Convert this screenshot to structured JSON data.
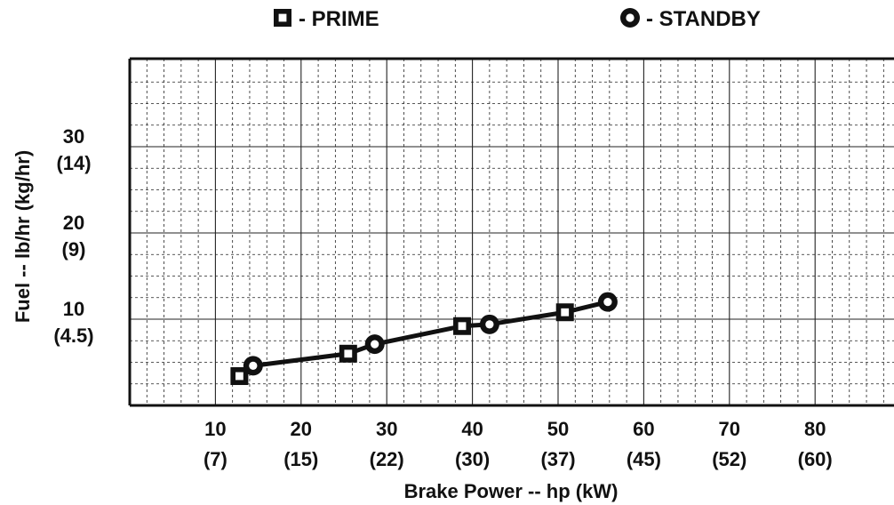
{
  "chart_data": {
    "type": "line",
    "xlabel": "Brake Power -- hp (kW)",
    "ylabel": "Fuel -- lb/hr (kg/hr)",
    "xlim": [
      0,
      90
    ],
    "ylim": [
      0,
      40
    ],
    "grid": true,
    "legend": "top",
    "x_ticks": [
      {
        "value": 10,
        "label": "10",
        "sublabel": "(7)"
      },
      {
        "value": 20,
        "label": "20",
        "sublabel": "(15)"
      },
      {
        "value": 30,
        "label": "30",
        "sublabel": "(22)"
      },
      {
        "value": 40,
        "label": "40",
        "sublabel": "(30)"
      },
      {
        "value": 50,
        "label": "50",
        "sublabel": "(37)"
      },
      {
        "value": 60,
        "label": "60",
        "sublabel": "(45)"
      },
      {
        "value": 70,
        "label": "70",
        "sublabel": "(52)"
      },
      {
        "value": 80,
        "label": "80",
        "sublabel": "(60)"
      }
    ],
    "y_ticks": [
      {
        "value": 10,
        "label": "10",
        "sublabel": "(4.5)"
      },
      {
        "value": 20,
        "label": "20",
        "sublabel": "(9)"
      },
      {
        "value": 30,
        "label": "30",
        "sublabel": "(14)"
      }
    ],
    "series": [
      {
        "name": "- PRIME",
        "marker": "square",
        "x": [
          12.8,
          25.5,
          38.8,
          50.8
        ],
        "y": [
          3.4,
          6.0,
          9.2,
          10.8
        ]
      },
      {
        "name": "- STANDBY",
        "marker": "circle",
        "x": [
          14.4,
          28.6,
          42.0,
          55.8
        ],
        "y": [
          4.6,
          7.1,
          9.4,
          12.0
        ]
      }
    ],
    "line_color": "#111111"
  }
}
